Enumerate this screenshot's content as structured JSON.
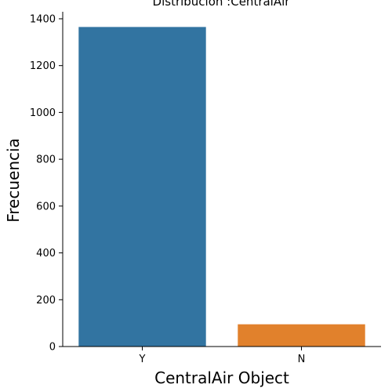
{
  "chart_data": {
    "type": "bar",
    "title": "Distribución :CentralAir",
    "xlabel": "CentralAir Object",
    "ylabel": "Frecuencia",
    "categories": [
      "Y",
      "N"
    ],
    "values": [
      1365,
      95
    ],
    "ylim": [
      0,
      1430
    ],
    "yticks": [
      0,
      200,
      400,
      600,
      800,
      1000,
      1200,
      1400
    ],
    "grid": false,
    "colors": [
      "#3274a1",
      "#e1812c"
    ]
  }
}
